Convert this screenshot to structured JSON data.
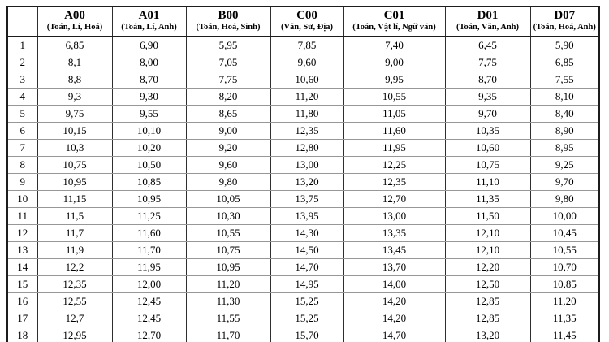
{
  "table": {
    "columns": [
      {
        "code": "",
        "subjects": ""
      },
      {
        "code": "A00",
        "subjects": "(Toán, Lí, Hoá)"
      },
      {
        "code": "A01",
        "subjects": "(Toán, Lí, Anh)"
      },
      {
        "code": "B00",
        "subjects": "(Toán, Hoá, Sinh)"
      },
      {
        "code": "C00",
        "subjects": "(Văn, Sử, Địa)"
      },
      {
        "code": "C01",
        "subjects": "(Toán, Vật lí, Ngữ văn)"
      },
      {
        "code": "D01",
        "subjects": "(Toán, Văn, Anh)"
      },
      {
        "code": "D07",
        "subjects": "(Toán, Hoá, Anh)"
      }
    ],
    "rows": [
      {
        "index": "1",
        "values": [
          "6,85",
          "6,90",
          "5,95",
          "7,85",
          "7,40",
          "6,45",
          "5,90"
        ]
      },
      {
        "index": "2",
        "values": [
          "8,1",
          "8,00",
          "7,05",
          "9,60",
          "9,00",
          "7,75",
          "6,85"
        ]
      },
      {
        "index": "3",
        "values": [
          "8,8",
          "8,70",
          "7,75",
          "10,60",
          "9,95",
          "8,70",
          "7,55"
        ]
      },
      {
        "index": "4",
        "values": [
          "9,3",
          "9,30",
          "8,20",
          "11,20",
          "10,55",
          "9,35",
          "8,10"
        ]
      },
      {
        "index": "5",
        "values": [
          "9,75",
          "9,55",
          "8,65",
          "11,80",
          "11,05",
          "9,70",
          "8,40"
        ]
      },
      {
        "index": "6",
        "values": [
          "10,15",
          "10,10",
          "9,00",
          "12,35",
          "11,60",
          "10,35",
          "8,90"
        ]
      },
      {
        "index": "7",
        "values": [
          "10,3",
          "10,20",
          "9,20",
          "12,80",
          "11,95",
          "10,60",
          "8,95"
        ]
      },
      {
        "index": "8",
        "values": [
          "10,75",
          "10,50",
          "9,60",
          "13,00",
          "12,25",
          "10,75",
          "9,25"
        ]
      },
      {
        "index": "9",
        "values": [
          "10,95",
          "10,85",
          "9,80",
          "13,20",
          "12,35",
          "11,10",
          "9,70"
        ]
      },
      {
        "index": "10",
        "values": [
          "11,15",
          "10,95",
          "10,05",
          "13,75",
          "12,70",
          "11,35",
          "9,80"
        ]
      },
      {
        "index": "11",
        "values": [
          "11,5",
          "11,25",
          "10,30",
          "13,95",
          "13,00",
          "11,50",
          "10,00"
        ]
      },
      {
        "index": "12",
        "values": [
          "11,7",
          "11,60",
          "10,55",
          "14,30",
          "13,35",
          "12,10",
          "10,45"
        ]
      },
      {
        "index": "13",
        "values": [
          "11,9",
          "11,70",
          "10,75",
          "14,50",
          "13,45",
          "12,10",
          "10,55"
        ]
      },
      {
        "index": "14",
        "values": [
          "12,2",
          "11,95",
          "10,95",
          "14,70",
          "13,70",
          "12,20",
          "10,70"
        ]
      },
      {
        "index": "15",
        "values": [
          "12,35",
          "12,00",
          "11,20",
          "14,95",
          "14,00",
          "12,50",
          "10,85"
        ]
      },
      {
        "index": "16",
        "values": [
          "12,55",
          "12,45",
          "11,30",
          "15,25",
          "14,20",
          "12,85",
          "11,20"
        ]
      },
      {
        "index": "17",
        "values": [
          "12,7",
          "12,45",
          "11,55",
          "15,25",
          "14,20",
          "12,85",
          "11,35"
        ]
      },
      {
        "index": "18",
        "values": [
          "12,95",
          "12,70",
          "11,70",
          "15,70",
          "14,70",
          "13,20",
          "11,45"
        ]
      }
    ]
  }
}
